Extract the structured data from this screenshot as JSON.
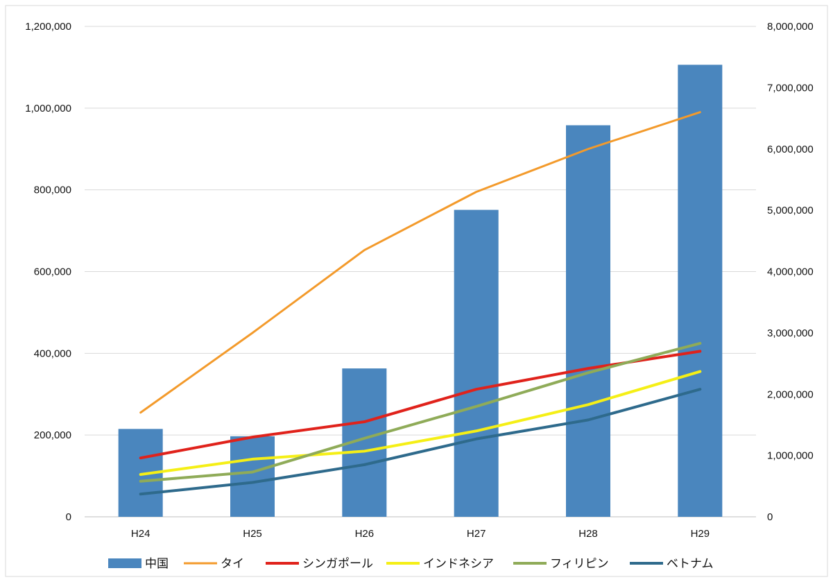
{
  "chart_data": {
    "type": "bar",
    "categories": [
      "H24",
      "H25",
      "H26",
      "H27",
      "H28",
      "H29"
    ],
    "bar_series": {
      "name": "中国",
      "axis": "left",
      "color": "#4a86be",
      "values": [
        215000,
        197000,
        363000,
        751000,
        958000,
        1106000
      ]
    },
    "line_series": [
      {
        "name": "タイ",
        "axis": "right",
        "color": "#f39a2b",
        "values": [
          1700000,
          3000000,
          4350000,
          5300000,
          6000000,
          6600000
        ]
      },
      {
        "name": "シンガポール",
        "axis": "right",
        "color": "#e0221b",
        "values": [
          960000,
          1300000,
          1550000,
          2080000,
          2420000,
          2700000
        ]
      },
      {
        "name": "インドネシア",
        "axis": "right",
        "color": "#f5ef16",
        "values": [
          690000,
          940000,
          1070000,
          1400000,
          1830000,
          2370000
        ]
      },
      {
        "name": "フィリピン",
        "axis": "right",
        "color": "#8fab58",
        "values": [
          580000,
          730000,
          1280000,
          1800000,
          2350000,
          2830000
        ]
      },
      {
        "name": "ベトナム",
        "axis": "right",
        "color": "#2e6a8c",
        "values": [
          370000,
          560000,
          850000,
          1270000,
          1580000,
          2080000
        ]
      }
    ],
    "left_axis": {
      "ylim": [
        0,
        1200000
      ],
      "ticks": [
        "0",
        "200,000",
        "400,000",
        "600,000",
        "800,000",
        "1,000,000",
        "1,200,000"
      ]
    },
    "right_axis": {
      "ylim": [
        0,
        8000000
      ],
      "ticks": [
        "0",
        "1,000,000",
        "2,000,000",
        "3,000,000",
        "4,000,000",
        "5,000,000",
        "6,000,000",
        "7,000,000",
        "8,000,000"
      ]
    },
    "grid": true,
    "legend_position": "bottom",
    "legend": [
      "中国",
      "タイ",
      "シンガポール",
      "インドネシア",
      "フィリピン",
      "ベトナム"
    ]
  }
}
